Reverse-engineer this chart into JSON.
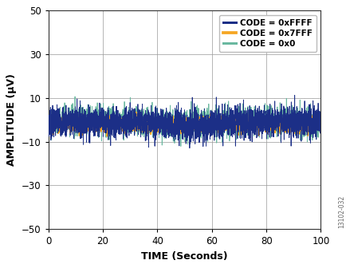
{
  "title": "",
  "xlabel": "TIME (Seconds)",
  "ylabel": "AMPLITUDE (μV)",
  "xlim": [
    0,
    100
  ],
  "ylim": [
    -50,
    50
  ],
  "xticks": [
    0,
    20,
    40,
    60,
    80,
    100
  ],
  "yticks": [
    -50,
    -30,
    -10,
    10,
    30,
    50
  ],
  "legend": [
    {
      "label": "CODE = 0xFFFF",
      "color": "#1c2f87",
      "lw": 1.2
    },
    {
      "label": "CODE = 0x7FFF",
      "color": "#f5a623",
      "lw": 1.5
    },
    {
      "label": "CODE = 0x0",
      "color": "#6ab8a0",
      "lw": 1.2
    }
  ],
  "noise_params": {
    "n_points": 3000,
    "seed": 7,
    "code_FFFF": {
      "mean": -1.5,
      "std": 3.5,
      "color": "#1c2f87",
      "lw": 0.6,
      "zorder": 4
    },
    "code_7FFF": {
      "mean": -2.0,
      "std": 1.6,
      "color": "#f5a623",
      "lw": 1.1,
      "zorder": 3,
      "alpha": 1.0
    },
    "code_0": {
      "mean": -1.0,
      "std": 3.2,
      "color": "#6ab8a0",
      "lw": 0.6,
      "zorder": 2
    }
  },
  "background_color": "#ffffff",
  "grid_color": "#999999",
  "watermark": "13102-032",
  "legend_fontsize": 7.5,
  "axis_label_fontsize": 9,
  "tick_fontsize": 8.5
}
